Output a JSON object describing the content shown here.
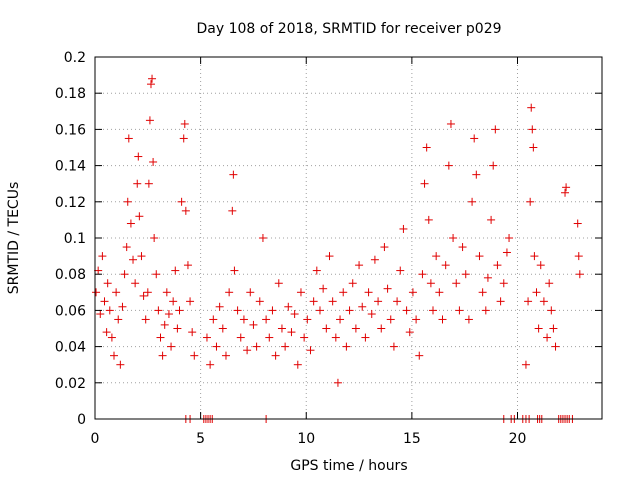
{
  "chart_data": {
    "type": "scatter",
    "title": "Day 108 of 2018, SRMTID for receiver p029",
    "xlabel": "GPS time / hours",
    "ylabel": "SRMTID / TECUs",
    "xlim": [
      0,
      24
    ],
    "ylim": [
      0,
      0.2
    ],
    "xticks": [
      0,
      5,
      10,
      15,
      20
    ],
    "xtick_labels": [
      "0",
      "5",
      "10",
      "15",
      "20"
    ],
    "yticks": [
      0,
      0.02,
      0.04,
      0.06,
      0.08,
      0.1,
      0.12,
      0.14,
      0.16,
      0.18,
      0.2
    ],
    "ytick_labels": [
      "0",
      "0.02",
      "0.04",
      "0.06",
      "0.08",
      "0.1",
      "0.12",
      "0.14",
      "0.16",
      "0.18",
      "0.2"
    ],
    "grid": true,
    "marker": "+",
    "color": "#e00000",
    "series": [
      {
        "name": "SRMTID",
        "points": [
          [
            0.05,
            0.07
          ],
          [
            0.15,
            0.082
          ],
          [
            0.25,
            0.058
          ],
          [
            0.35,
            0.09
          ],
          [
            0.45,
            0.065
          ],
          [
            0.55,
            0.048
          ],
          [
            0.6,
            0.075
          ],
          [
            0.7,
            0.06
          ],
          [
            0.8,
            0.045
          ],
          [
            0.9,
            0.035
          ],
          [
            1.0,
            0.07
          ],
          [
            1.1,
            0.055
          ],
          [
            1.2,
            0.03
          ],
          [
            1.3,
            0.062
          ],
          [
            1.4,
            0.08
          ],
          [
            1.5,
            0.095
          ],
          [
            1.55,
            0.12
          ],
          [
            1.6,
            0.155
          ],
          [
            1.7,
            0.108
          ],
          [
            1.8,
            0.088
          ],
          [
            1.9,
            0.075
          ],
          [
            2.0,
            0.13
          ],
          [
            2.05,
            0.145
          ],
          [
            2.1,
            0.112
          ],
          [
            2.2,
            0.09
          ],
          [
            2.3,
            0.068
          ],
          [
            2.4,
            0.055
          ],
          [
            2.5,
            0.07
          ],
          [
            2.55,
            0.13
          ],
          [
            2.6,
            0.165
          ],
          [
            2.65,
            0.185
          ],
          [
            2.7,
            0.188
          ],
          [
            2.75,
            0.142
          ],
          [
            2.8,
            0.1
          ],
          [
            2.9,
            0.08
          ],
          [
            3.0,
            0.06
          ],
          [
            3.1,
            0.045
          ],
          [
            3.2,
            0.035
          ],
          [
            3.3,
            0.052
          ],
          [
            3.4,
            0.07
          ],
          [
            3.5,
            0.058
          ],
          [
            3.6,
            0.04
          ],
          [
            3.7,
            0.065
          ],
          [
            3.8,
            0.082
          ],
          [
            3.9,
            0.05
          ],
          [
            4.0,
            0.06
          ],
          [
            4.1,
            0.12
          ],
          [
            4.2,
            0.155
          ],
          [
            4.25,
            0.163
          ],
          [
            4.3,
            0.115
          ],
          [
            4.4,
            0.085
          ],
          [
            4.5,
            0.065
          ],
          [
            4.6,
            0.048
          ],
          [
            4.7,
            0.035
          ],
          [
            5.3,
            0.045
          ],
          [
            5.45,
            0.03
          ],
          [
            5.6,
            0.055
          ],
          [
            5.75,
            0.04
          ],
          [
            5.9,
            0.062
          ],
          [
            6.05,
            0.05
          ],
          [
            6.2,
            0.035
          ],
          [
            6.35,
            0.07
          ],
          [
            6.5,
            0.115
          ],
          [
            6.55,
            0.135
          ],
          [
            6.6,
            0.082
          ],
          [
            6.75,
            0.06
          ],
          [
            6.9,
            0.045
          ],
          [
            7.05,
            0.055
          ],
          [
            7.2,
            0.038
          ],
          [
            7.35,
            0.07
          ],
          [
            7.5,
            0.052
          ],
          [
            7.65,
            0.04
          ],
          [
            7.8,
            0.065
          ],
          [
            7.95,
            0.1
          ],
          [
            8.1,
            0.055
          ],
          [
            8.25,
            0.045
          ],
          [
            8.4,
            0.06
          ],
          [
            8.55,
            0.035
          ],
          [
            8.7,
            0.075
          ],
          [
            8.85,
            0.05
          ],
          [
            9.0,
            0.04
          ],
          [
            9.15,
            0.062
          ],
          [
            9.3,
            0.048
          ],
          [
            9.45,
            0.058
          ],
          [
            9.6,
            0.03
          ],
          [
            9.75,
            0.07
          ],
          [
            9.9,
            0.045
          ],
          [
            10.05,
            0.055
          ],
          [
            10.2,
            0.038
          ],
          [
            10.35,
            0.065
          ],
          [
            10.5,
            0.082
          ],
          [
            10.65,
            0.06
          ],
          [
            10.8,
            0.072
          ],
          [
            10.95,
            0.05
          ],
          [
            11.1,
            0.09
          ],
          [
            11.25,
            0.065
          ],
          [
            11.4,
            0.045
          ],
          [
            11.5,
            0.02
          ],
          [
            11.6,
            0.055
          ],
          [
            11.75,
            0.07
          ],
          [
            11.9,
            0.04
          ],
          [
            12.05,
            0.06
          ],
          [
            12.2,
            0.075
          ],
          [
            12.35,
            0.05
          ],
          [
            12.5,
            0.085
          ],
          [
            12.65,
            0.062
          ],
          [
            12.8,
            0.045
          ],
          [
            12.95,
            0.07
          ],
          [
            13.1,
            0.058
          ],
          [
            13.25,
            0.088
          ],
          [
            13.4,
            0.065
          ],
          [
            13.55,
            0.05
          ],
          [
            13.7,
            0.095
          ],
          [
            13.85,
            0.072
          ],
          [
            14.0,
            0.055
          ],
          [
            14.15,
            0.04
          ],
          [
            14.3,
            0.065
          ],
          [
            14.45,
            0.082
          ],
          [
            14.6,
            0.105
          ],
          [
            14.75,
            0.06
          ],
          [
            14.9,
            0.048
          ],
          [
            15.05,
            0.07
          ],
          [
            15.2,
            0.055
          ],
          [
            15.35,
            0.035
          ],
          [
            15.5,
            0.08
          ],
          [
            15.6,
            0.13
          ],
          [
            15.7,
            0.15
          ],
          [
            15.8,
            0.11
          ],
          [
            15.9,
            0.075
          ],
          [
            16.0,
            0.06
          ],
          [
            16.15,
            0.09
          ],
          [
            16.3,
            0.07
          ],
          [
            16.45,
            0.055
          ],
          [
            16.6,
            0.085
          ],
          [
            16.75,
            0.14
          ],
          [
            16.85,
            0.163
          ],
          [
            16.95,
            0.1
          ],
          [
            17.1,
            0.075
          ],
          [
            17.25,
            0.06
          ],
          [
            17.4,
            0.095
          ],
          [
            17.55,
            0.08
          ],
          [
            17.7,
            0.055
          ],
          [
            17.85,
            0.12
          ],
          [
            17.95,
            0.155
          ],
          [
            18.05,
            0.135
          ],
          [
            18.2,
            0.09
          ],
          [
            18.35,
            0.07
          ],
          [
            18.5,
            0.06
          ],
          [
            18.6,
            0.078
          ],
          [
            18.75,
            0.11
          ],
          [
            18.85,
            0.14
          ],
          [
            18.95,
            0.16
          ],
          [
            19.05,
            0.085
          ],
          [
            19.2,
            0.065
          ],
          [
            19.35,
            0.075
          ],
          [
            19.5,
            0.092
          ],
          [
            19.6,
            0.1
          ],
          [
            20.4,
            0.03
          ],
          [
            20.5,
            0.065
          ],
          [
            20.6,
            0.12
          ],
          [
            20.65,
            0.172
          ],
          [
            20.7,
            0.16
          ],
          [
            20.75,
            0.15
          ],
          [
            20.8,
            0.09
          ],
          [
            20.9,
            0.07
          ],
          [
            21.0,
            0.05
          ],
          [
            21.1,
            0.085
          ],
          [
            21.25,
            0.065
          ],
          [
            21.4,
            0.045
          ],
          [
            21.5,
            0.075
          ],
          [
            21.6,
            0.06
          ],
          [
            21.7,
            0.05
          ],
          [
            21.8,
            0.04
          ],
          [
            22.25,
            0.125
          ],
          [
            22.3,
            0.128
          ],
          [
            22.85,
            0.108
          ],
          [
            22.9,
            0.09
          ],
          [
            22.95,
            0.08
          ]
        ]
      }
    ],
    "zero_points_x": [
      4.3,
      4.5,
      5.15,
      5.25,
      5.35,
      5.45,
      5.55,
      8.1,
      19.35,
      19.7,
      19.85,
      20.25,
      20.4,
      20.55,
      20.95,
      21.05,
      21.15,
      21.95,
      22.05,
      22.15,
      22.25,
      22.35,
      22.45,
      22.6
    ]
  }
}
